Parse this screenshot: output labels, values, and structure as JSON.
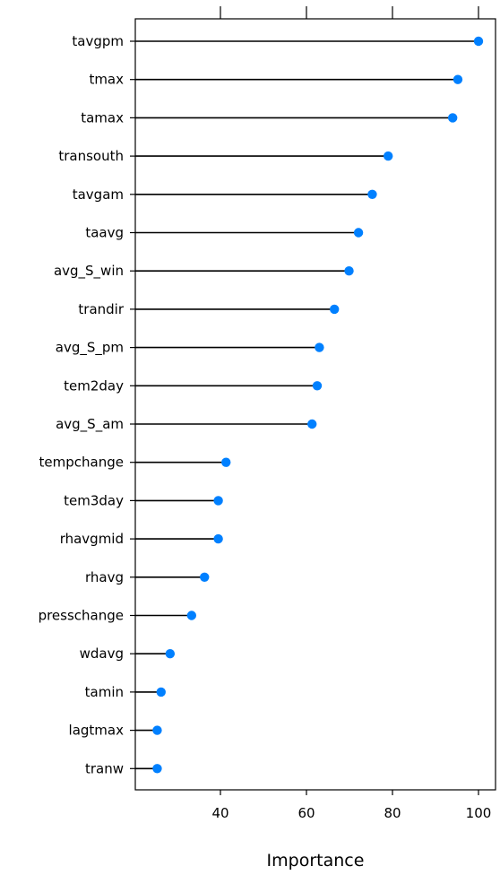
{
  "chart_data": {
    "type": "lollipop",
    "categories": [
      "tavgpm",
      "tmax",
      "tamax",
      "transouth",
      "tavgam",
      "taavg",
      "avg_S_win",
      "trandir",
      "avg_S_pm",
      "tem2day",
      "avg_S_am",
      "tempchange",
      "tem3day",
      "rhavgmid",
      "rhavg",
      "presschange",
      "wdavg",
      "tamin",
      "lagtmax",
      "tranw"
    ],
    "values": [
      100,
      95.2,
      94.0,
      79.0,
      75.3,
      72.1,
      69.9,
      66.5,
      63.0,
      62.5,
      61.3,
      41.3,
      39.5,
      39.5,
      36.3,
      33.3,
      28.3,
      26.2,
      25.3,
      25.3
    ],
    "xlabel": "Importance",
    "xticks": [
      "40",
      "60",
      "80",
      "100"
    ],
    "xlim": [
      18,
      104
    ],
    "point_color": "#0080ff",
    "line_color": "#000000"
  }
}
